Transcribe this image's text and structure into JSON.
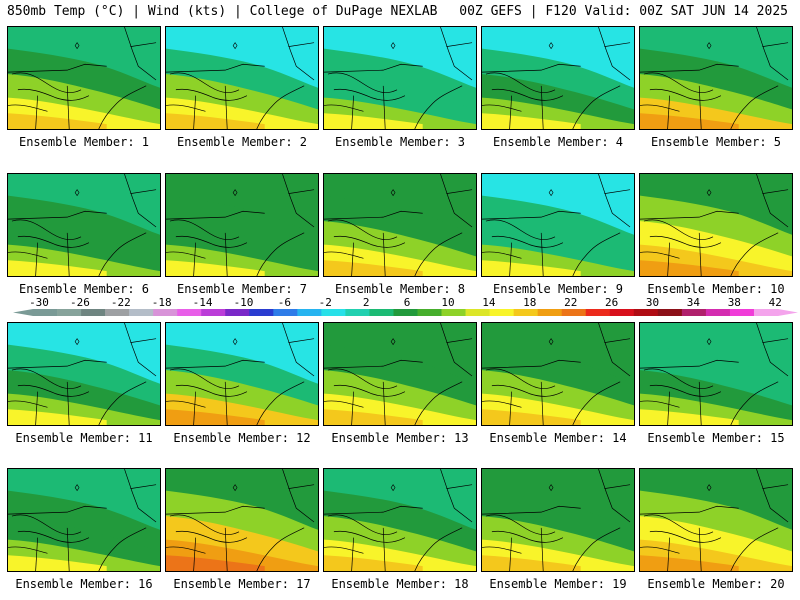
{
  "header": {
    "left": "850mb Temp (°C) | Wind (kts) | College of DuPage NEXLAB",
    "right": "00Z GEFS | F120 Valid: 00Z SAT JUN 14 2025"
  },
  "caption_prefix": "Ensemble Member:",
  "members": [
    {
      "id": 1,
      "label": "Ensemble Member: 1"
    },
    {
      "id": 2,
      "label": "Ensemble Member: 2"
    },
    {
      "id": 3,
      "label": "Ensemble Member: 3"
    },
    {
      "id": 4,
      "label": "Ensemble Member: 4"
    },
    {
      "id": 5,
      "label": "Ensemble Member: 5"
    },
    {
      "id": 6,
      "label": "Ensemble Member: 6"
    },
    {
      "id": 7,
      "label": "Ensemble Member: 7"
    },
    {
      "id": 8,
      "label": "Ensemble Member: 8"
    },
    {
      "id": 9,
      "label": "Ensemble Member: 9"
    },
    {
      "id": 10,
      "label": "Ensemble Member: 10"
    },
    {
      "id": 11,
      "label": "Ensemble Member: 11"
    },
    {
      "id": 12,
      "label": "Ensemble Member: 12"
    },
    {
      "id": 13,
      "label": "Ensemble Member: 13"
    },
    {
      "id": 14,
      "label": "Ensemble Member: 14"
    },
    {
      "id": 15,
      "label": "Ensemble Member: 15"
    },
    {
      "id": 16,
      "label": "Ensemble Member: 16"
    },
    {
      "id": 17,
      "label": "Ensemble Member: 17"
    },
    {
      "id": 18,
      "label": "Ensemble Member: 18"
    },
    {
      "id": 19,
      "label": "Ensemble Member: 19"
    },
    {
      "id": 20,
      "label": "Ensemble Member: 20"
    }
  ],
  "legend": {
    "labels": [
      "-30",
      "-26",
      "-22",
      "-18",
      "-14",
      "-10",
      "-6",
      "-2",
      "2",
      "6",
      "10",
      "14",
      "18",
      "22",
      "26",
      "30",
      "34",
      "38",
      "42"
    ],
    "colors": [
      "#7a9a96",
      "#87a39b",
      "#6f8581",
      "#9ea0a3",
      "#b4bdc8",
      "#d893d8",
      "#e85ee8",
      "#bb3dd8",
      "#7a28c8",
      "#2a3cd0",
      "#2f7ce8",
      "#27b4f0",
      "#28e0e8",
      "#22d0b0",
      "#1cba74",
      "#229a3c",
      "#46ae2c",
      "#8ed228",
      "#dce628",
      "#f8f42a",
      "#f4c81c",
      "#f09e12",
      "#ec7418",
      "#ec2a1c",
      "#d8101c",
      "#b00c14",
      "#8c1018",
      "#b0206c",
      "#d42cb0",
      "#f03cd8",
      "#f4a4ec"
    ]
  },
  "colors": {
    "cold": "#27e4e4",
    "cool": "#1cba74",
    "green": "#229a3c",
    "yellowgreen": "#8ed228",
    "yellow": "#f8f42a",
    "gold": "#f4c81c",
    "orange": "#f09e12",
    "deeporange": "#ec7418"
  }
}
